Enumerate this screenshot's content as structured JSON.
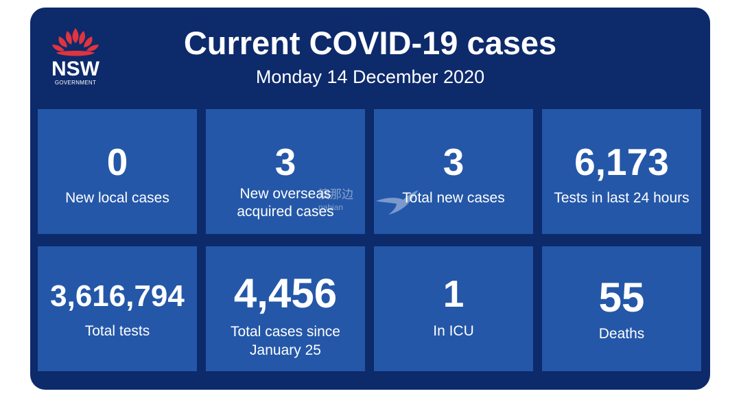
{
  "header": {
    "title": "Current COVID-19 cases",
    "date": "Monday 14 December 2020"
  },
  "logo": {
    "wordmark": "NSW",
    "subtext": "GOVERNMENT",
    "icon": "waratah-flower-icon"
  },
  "stats": [
    {
      "value": "0",
      "label": "New local cases"
    },
    {
      "value": "3",
      "label_lines": [
        "New overseas",
        "acquired cases"
      ]
    },
    {
      "value": "3",
      "label": "Total new cases"
    },
    {
      "value": "6,173",
      "label": "Tests in last 24 hours"
    },
    {
      "value": "3,616,794",
      "label": "Total tests"
    },
    {
      "value": "4,456",
      "label_lines": [
        "Total cases since",
        "January 25"
      ]
    },
    {
      "value": "1",
      "label": "In ICU"
    },
    {
      "value": "55",
      "label": "Deaths"
    }
  ],
  "watermark": {
    "text": "澳那边",
    "subtext": "nabian",
    "icon": "bird-swoosh-icon"
  },
  "colors": {
    "panel": "#0d2a6b",
    "tile": "#2457a8",
    "logo_red": "#e0343f",
    "text": "#ffffff"
  }
}
